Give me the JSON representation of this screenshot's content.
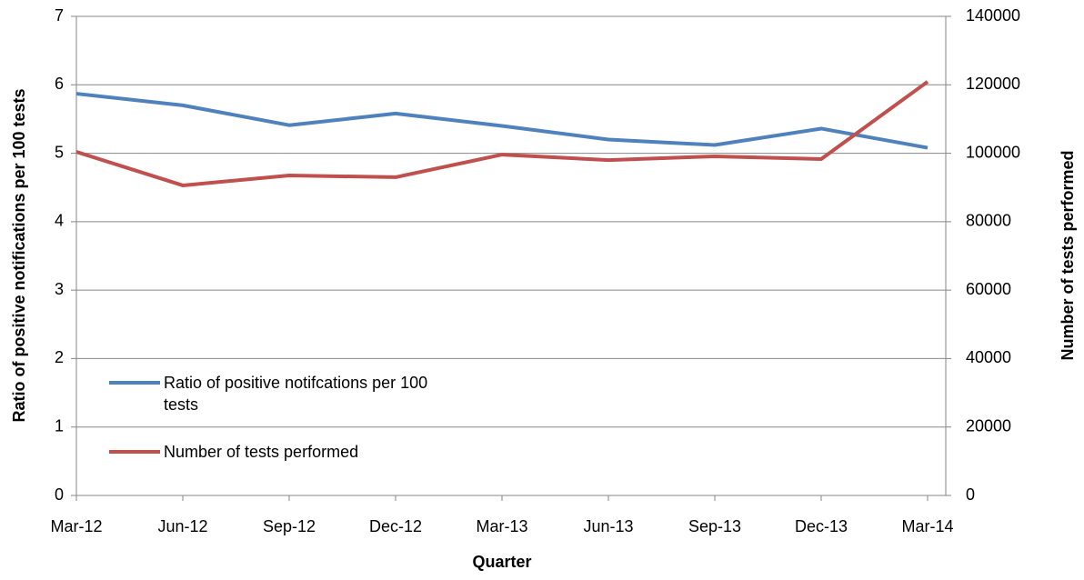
{
  "chart_data": {
    "type": "line",
    "x_label": "Quarter",
    "y_label": "Ratio of positive notifications per 100 tests",
    "y2_label": "Number of tests performed",
    "categories": [
      "Mar-12",
      "Jun-12",
      "Sep-12",
      "Dec-12",
      "Mar-13",
      "Jun-13",
      "Sep-13",
      "Dec-13",
      "Mar-14"
    ],
    "ylim": [
      0,
      7
    ],
    "yticks": [
      0,
      1,
      2,
      3,
      4,
      5,
      6,
      7
    ],
    "y2lim": [
      0,
      140000
    ],
    "y2ticks": [
      0,
      20000,
      40000,
      60000,
      80000,
      100000,
      120000,
      140000
    ],
    "grid": true,
    "legend": "lower-left",
    "series": [
      {
        "name": "Ratio of positive notifcations per 100 tests",
        "color": "#4f81bd",
        "values": [
          5.87,
          5.7,
          5.41,
          5.58,
          5.4,
          5.2,
          5.12,
          5.36,
          5.08
        ]
      },
      {
        "name": "Number of tests performed",
        "color": "#c0504d",
        "axis": "y2",
        "values": [
          100400,
          90600,
          93500,
          93000,
          99600,
          98000,
          99100,
          98300,
          120900
        ]
      }
    ]
  }
}
